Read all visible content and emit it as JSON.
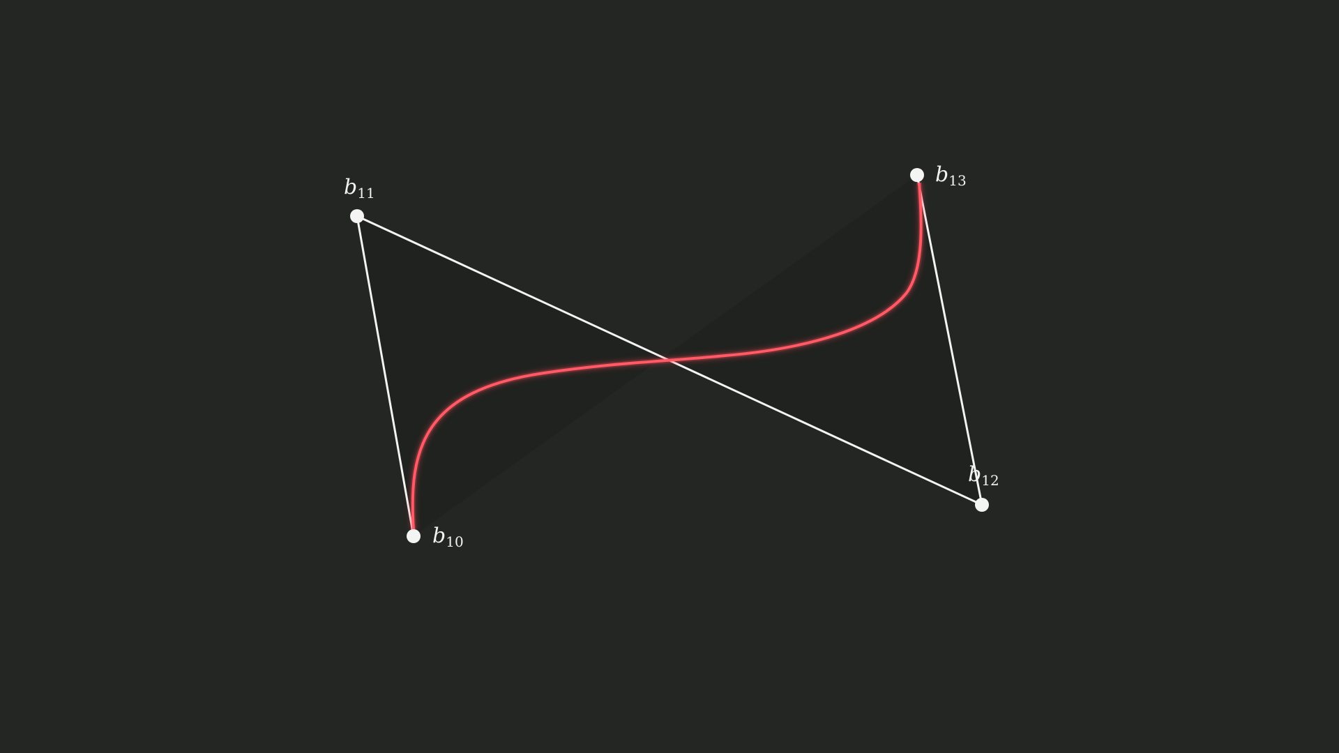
{
  "background_color": "#242623",
  "polygon_color": "#f4f4f4",
  "curve_color": "#ff5a66",
  "curve_glow_color": "#ff4a5a",
  "control_points": [
    {
      "id": "b10",
      "base": "b",
      "sub": "10"
    },
    {
      "id": "b11",
      "base": "b",
      "sub": "11"
    },
    {
      "id": "b12",
      "base": "b",
      "sub": "12"
    },
    {
      "id": "b13",
      "base": "b",
      "sub": "13"
    }
  ]
}
